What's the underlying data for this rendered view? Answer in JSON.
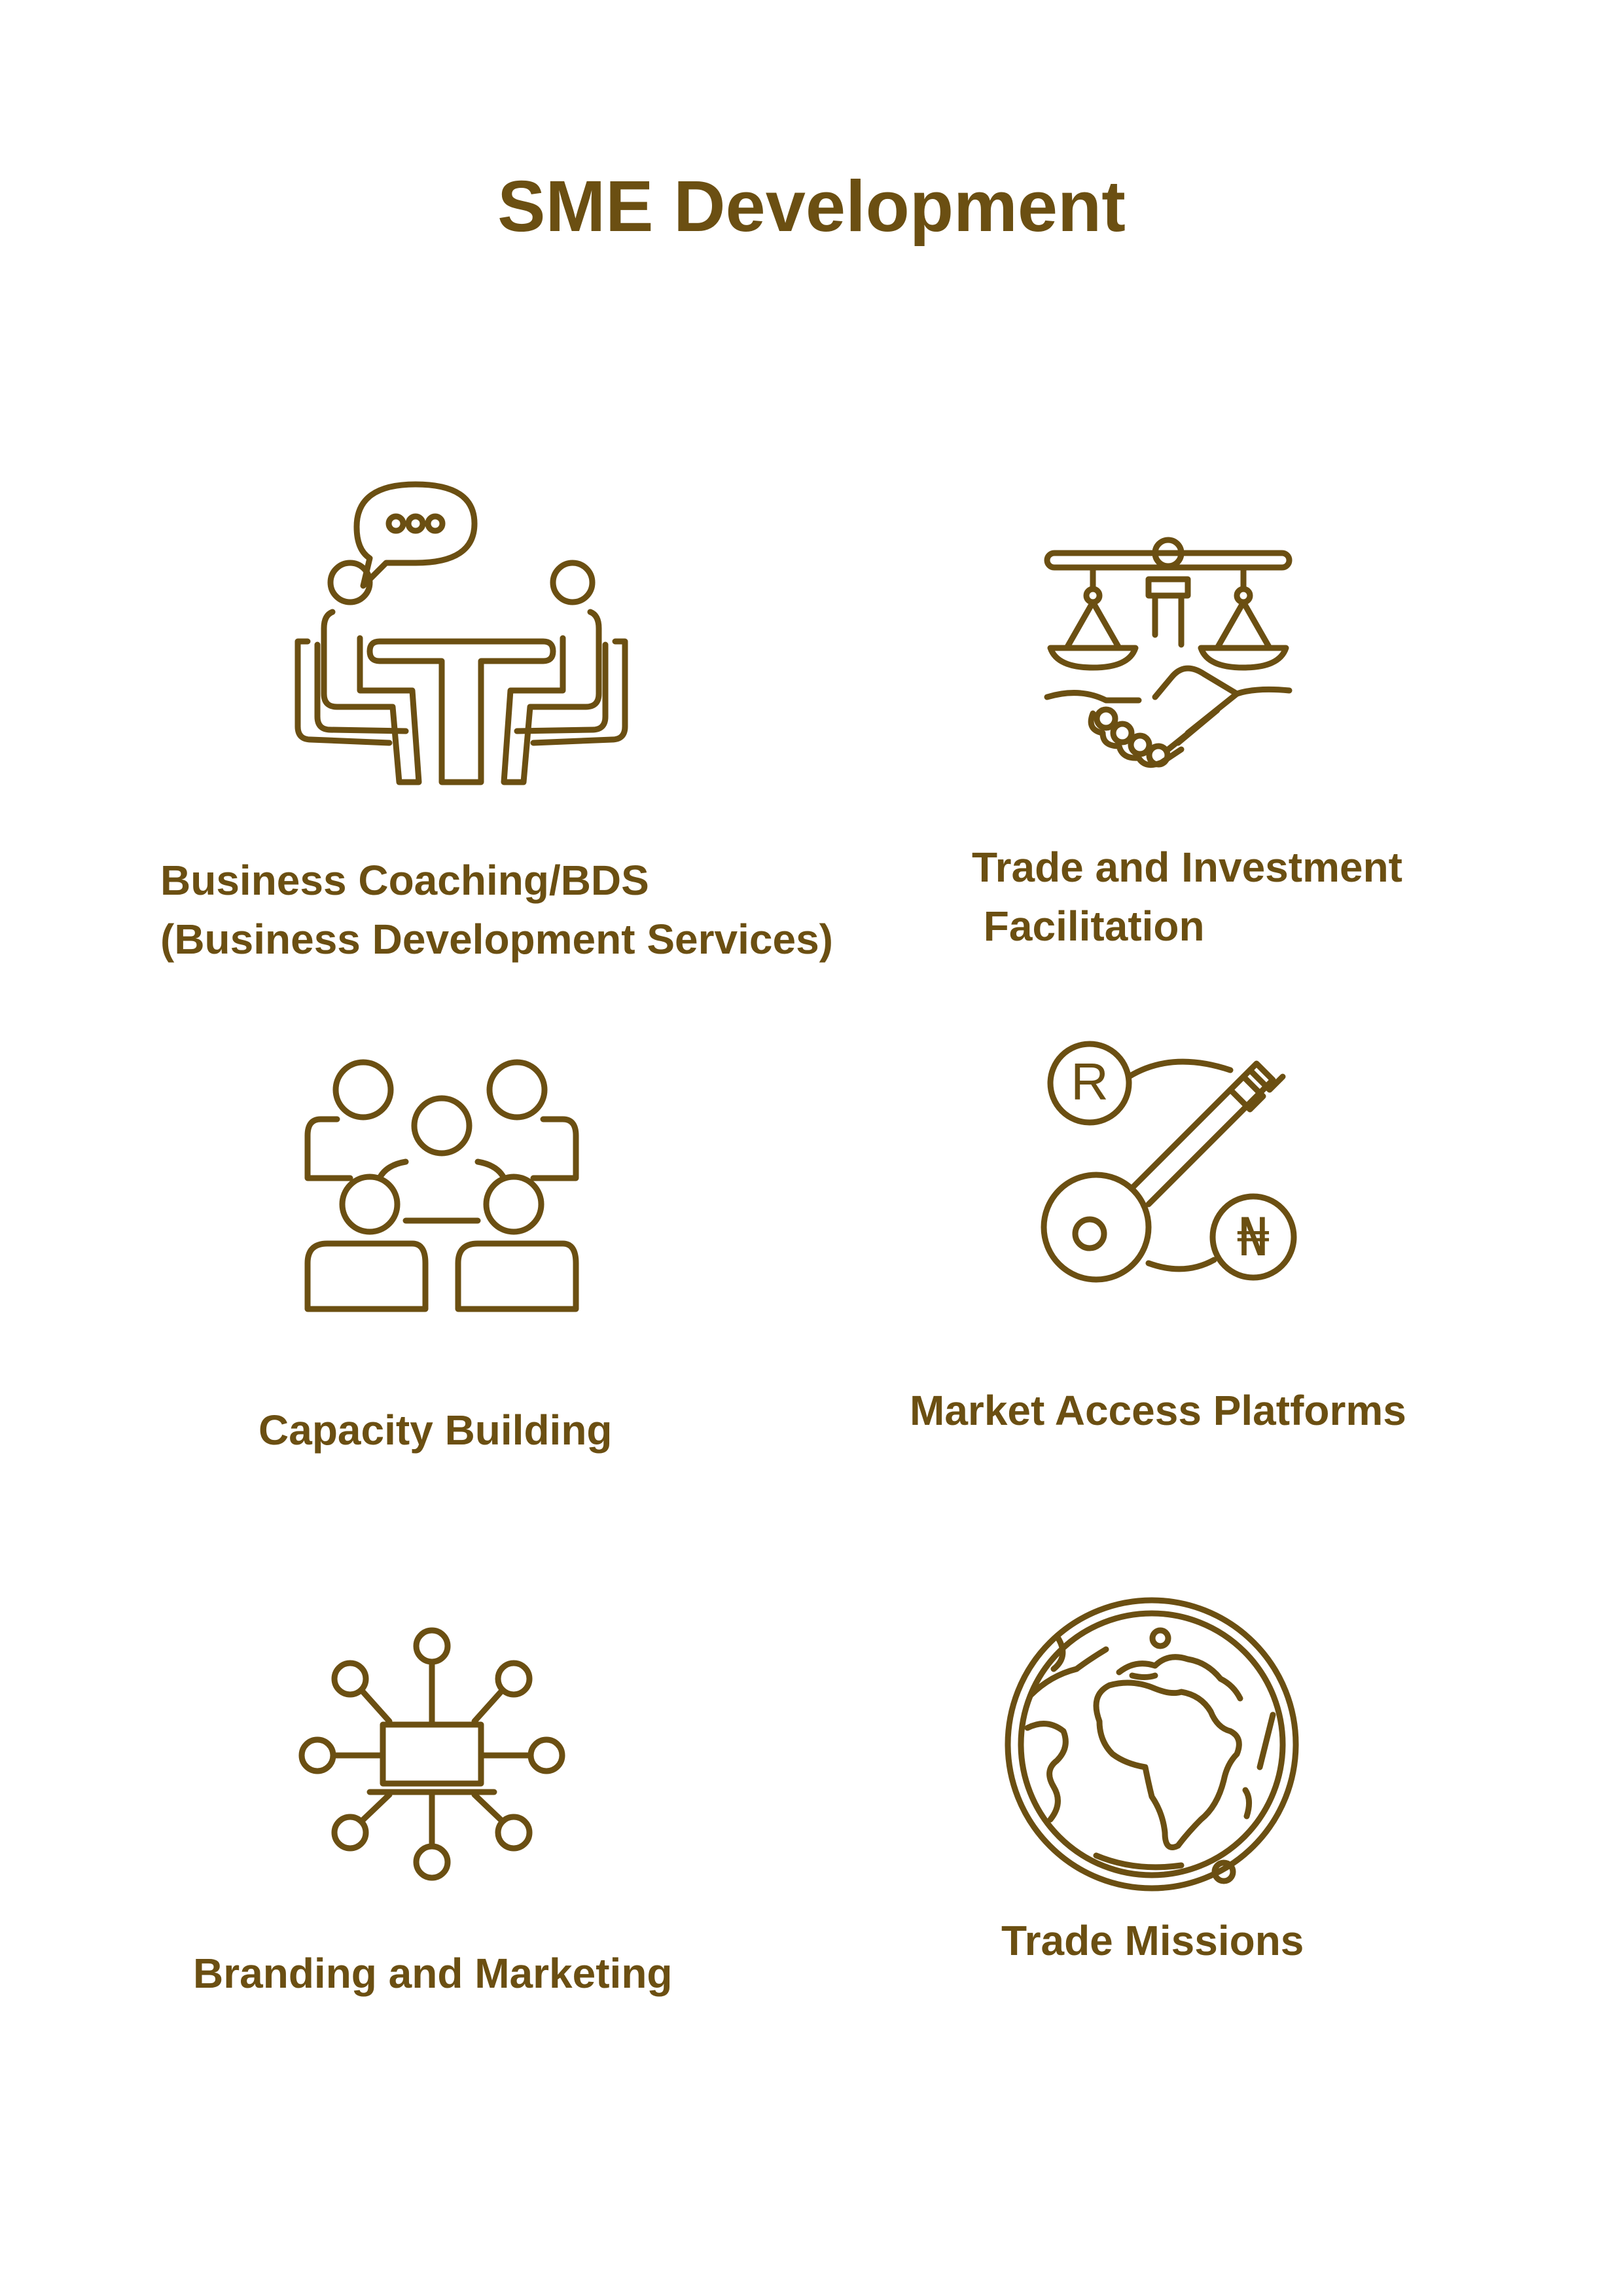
{
  "page": {
    "title": "SME Development",
    "accent_color": "#6b4f12"
  },
  "items": [
    {
      "icon": "business-meeting-icon",
      "lines": [
        "Business Coaching/BDS",
        "(Business Development Services)"
      ]
    },
    {
      "icon": "scales-handshake-icon",
      "lines": [
        "Trade and Investment",
        " Facilitation"
      ]
    },
    {
      "icon": "group-network-icon",
      "lines": [
        "Capacity Building"
      ]
    },
    {
      "icon": "key-registered-naira-icon",
      "lines": [
        "Market Access Platforms"
      ]
    },
    {
      "icon": "laptop-hub-icon",
      "lines": [
        "Branding and Marketing"
      ]
    },
    {
      "icon": "globe-africa-icon",
      "lines": [
        "Trade Missions"
      ]
    }
  ]
}
